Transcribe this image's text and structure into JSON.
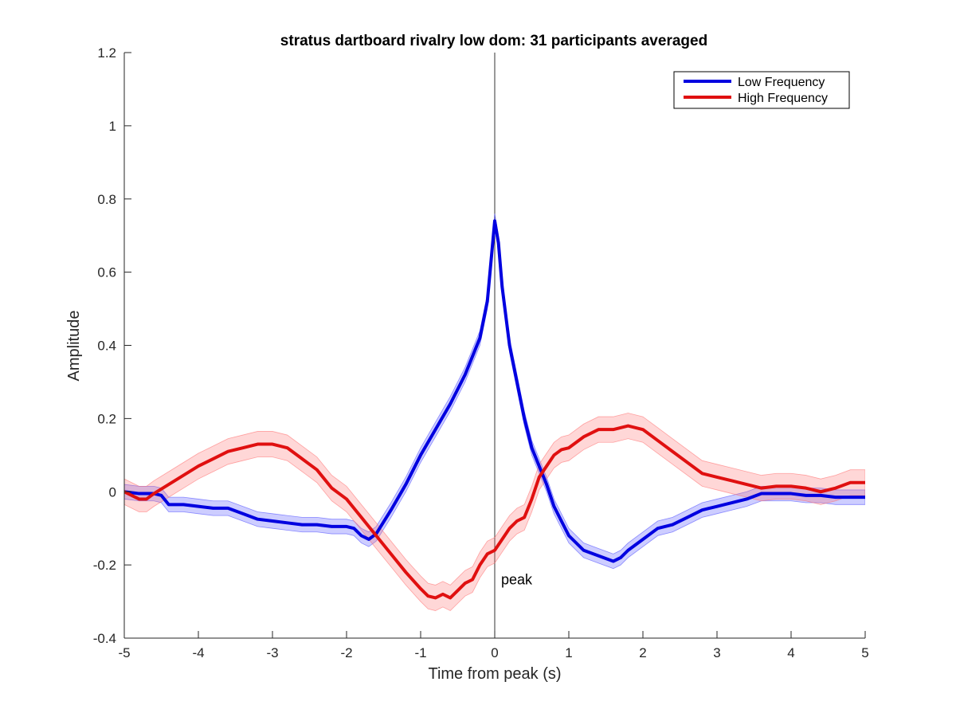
{
  "chart_data": {
    "type": "line",
    "title": "stratus dartboard rivalry low dom: 31 participants averaged",
    "xlabel": "Time from peak (s)",
    "ylabel": "Amplitude",
    "xlim": [
      -5,
      5
    ],
    "ylim": [
      -0.4,
      1.2
    ],
    "xticks": [
      -5,
      -4,
      -3,
      -2,
      -1,
      0,
      1,
      2,
      3,
      4,
      5
    ],
    "xtick_labels": [
      "-5",
      "-4",
      "-3",
      "-2",
      "-1",
      "0",
      "1",
      "2",
      "3",
      "4",
      "5"
    ],
    "yticks": [
      -0.4,
      -0.2,
      0,
      0.2,
      0.4,
      0.6,
      0.8,
      1.0,
      1.2
    ],
    "ytick_labels": [
      "-0.4",
      "-0.2",
      "0",
      "0.2",
      "0.4",
      "0.6",
      "0.8",
      "1",
      "1.2"
    ],
    "grid": false,
    "legend_position": "top-right",
    "vline": {
      "x": 0,
      "label": "peak",
      "label_y": -0.24
    },
    "series": [
      {
        "name": "Low Frequency",
        "color": "#0000e0",
        "band_color": "#4d4dff",
        "band_halfwidth": 0.02,
        "x": [
          -5,
          -4.8,
          -4.6,
          -4.5,
          -4.4,
          -4.2,
          -4.0,
          -3.8,
          -3.6,
          -3.4,
          -3.2,
          -3.0,
          -2.8,
          -2.6,
          -2.4,
          -2.2,
          -2.0,
          -1.9,
          -1.8,
          -1.7,
          -1.6,
          -1.4,
          -1.2,
          -1.0,
          -0.8,
          -0.6,
          -0.4,
          -0.2,
          -0.1,
          -0.05,
          0,
          0.05,
          0.1,
          0.2,
          0.3,
          0.4,
          0.5,
          0.6,
          0.7,
          0.8,
          0.9,
          1.0,
          1.2,
          1.4,
          1.6,
          1.7,
          1.8,
          2.0,
          2.2,
          2.4,
          2.6,
          2.8,
          3.0,
          3.2,
          3.4,
          3.6,
          3.8,
          4.0,
          4.2,
          4.4,
          4.6,
          4.8,
          5.0
        ],
        "y": [
          0.0,
          -0.005,
          -0.005,
          -0.01,
          -0.035,
          -0.035,
          -0.04,
          -0.045,
          -0.045,
          -0.06,
          -0.075,
          -0.08,
          -0.085,
          -0.09,
          -0.09,
          -0.095,
          -0.095,
          -0.1,
          -0.12,
          -0.13,
          -0.115,
          -0.05,
          0.02,
          0.1,
          0.17,
          0.24,
          0.32,
          0.42,
          0.52,
          0.63,
          0.74,
          0.68,
          0.56,
          0.4,
          0.3,
          0.2,
          0.12,
          0.07,
          0.02,
          -0.04,
          -0.08,
          -0.12,
          -0.16,
          -0.175,
          -0.19,
          -0.18,
          -0.16,
          -0.13,
          -0.1,
          -0.09,
          -0.07,
          -0.05,
          -0.04,
          -0.03,
          -0.02,
          -0.005,
          -0.005,
          -0.005,
          -0.01,
          -0.01,
          -0.015,
          -0.015,
          -0.015
        ]
      },
      {
        "name": "High Frequency",
        "color": "#e01010",
        "band_color": "#ff7070",
        "band_halfwidth": 0.035,
        "x": [
          -5,
          -4.8,
          -4.7,
          -4.6,
          -4.4,
          -4.2,
          -4.0,
          -3.8,
          -3.6,
          -3.4,
          -3.2,
          -3.0,
          -2.8,
          -2.6,
          -2.4,
          -2.2,
          -2.0,
          -1.8,
          -1.6,
          -1.4,
          -1.2,
          -1.0,
          -0.9,
          -0.8,
          -0.7,
          -0.6,
          -0.5,
          -0.4,
          -0.3,
          -0.2,
          -0.1,
          0,
          0.1,
          0.2,
          0.3,
          0.4,
          0.5,
          0.6,
          0.7,
          0.8,
          0.9,
          1.0,
          1.2,
          1.4,
          1.6,
          1.8,
          2.0,
          2.2,
          2.4,
          2.6,
          2.8,
          3.0,
          3.2,
          3.4,
          3.6,
          3.8,
          4.0,
          4.2,
          4.4,
          4.6,
          4.8,
          5.0
        ],
        "y": [
          0.0,
          -0.02,
          -0.02,
          -0.005,
          0.02,
          0.045,
          0.07,
          0.09,
          0.11,
          0.12,
          0.13,
          0.13,
          0.12,
          0.09,
          0.06,
          0.01,
          -0.02,
          -0.07,
          -0.12,
          -0.17,
          -0.22,
          -0.265,
          -0.285,
          -0.29,
          -0.28,
          -0.29,
          -0.27,
          -0.25,
          -0.24,
          -0.2,
          -0.17,
          -0.16,
          -0.13,
          -0.1,
          -0.08,
          -0.07,
          -0.02,
          0.04,
          0.07,
          0.1,
          0.115,
          0.12,
          0.15,
          0.17,
          0.17,
          0.18,
          0.17,
          0.14,
          0.11,
          0.08,
          0.05,
          0.04,
          0.03,
          0.02,
          0.01,
          0.015,
          0.015,
          0.01,
          0.0,
          0.01,
          0.025,
          0.025
        ]
      }
    ]
  }
}
